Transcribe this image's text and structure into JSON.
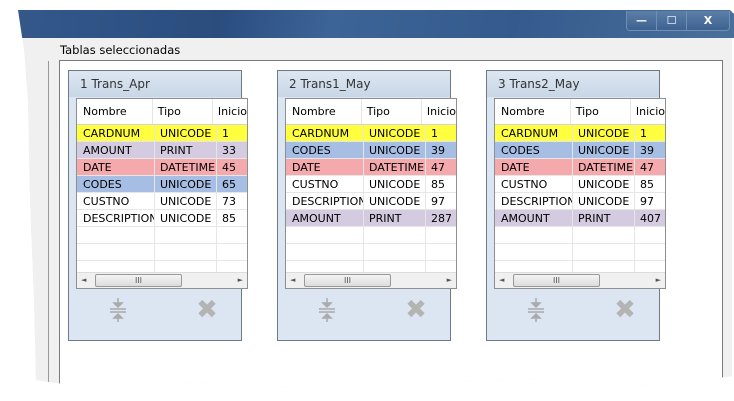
{
  "window": {
    "controls": {
      "minimize": "—",
      "maximize": "☐",
      "close": "X"
    }
  },
  "group_label": "Tablas seleccionadas",
  "columns": [
    "Nombre",
    "Tipo",
    "Inicio"
  ],
  "row_colors": {
    "yellow": "#ffff40",
    "purple": "#d5cbe0",
    "red": "#f4a9ad",
    "blue": "#a6bee4",
    "white": "#ffffff"
  },
  "tables": [
    {
      "title": "1 Trans_Apr",
      "rows": [
        {
          "nombre": "CARDNUM",
          "tipo": "UNICODE",
          "inicio": "1",
          "color": "#ffff40"
        },
        {
          "nombre": "AMOUNT",
          "tipo": "PRINT",
          "inicio": "33",
          "color": "#d5cbe0"
        },
        {
          "nombre": "DATE",
          "tipo": "DATETIME",
          "inicio": "45",
          "color": "#f4a9ad"
        },
        {
          "nombre": "CODES",
          "tipo": "UNICODE",
          "inicio": "65",
          "color": "#a6bee4"
        },
        {
          "nombre": "CUSTNO",
          "tipo": "UNICODE",
          "inicio": "73",
          "color": "#ffffff"
        },
        {
          "nombre": "DESCRIPTION",
          "tipo": "UNICODE",
          "inicio": "85",
          "color": "#ffffff"
        }
      ]
    },
    {
      "title": "2 Trans1_May",
      "rows": [
        {
          "nombre": "CARDNUM",
          "tipo": "UNICODE",
          "inicio": "1",
          "color": "#ffff40"
        },
        {
          "nombre": "CODES",
          "tipo": "UNICODE",
          "inicio": "39",
          "color": "#a6bee4"
        },
        {
          "nombre": "DATE",
          "tipo": "DATETIME",
          "inicio": "47",
          "color": "#f4a9ad"
        },
        {
          "nombre": "CUSTNO",
          "tipo": "UNICODE",
          "inicio": "85",
          "color": "#ffffff"
        },
        {
          "nombre": "DESCRIPTION",
          "tipo": "UNICODE",
          "inicio": "97",
          "color": "#ffffff"
        },
        {
          "nombre": "AMOUNT",
          "tipo": "PRINT",
          "inicio": "287",
          "color": "#d5cbe0"
        }
      ]
    },
    {
      "title": "3 Trans2_May",
      "rows": [
        {
          "nombre": "CARDNUM",
          "tipo": "UNICODE",
          "inicio": "1",
          "color": "#ffff40"
        },
        {
          "nombre": "CODES",
          "tipo": "UNICODE",
          "inicio": "39",
          "color": "#a6bee4"
        },
        {
          "nombre": "DATE",
          "tipo": "DATETIME",
          "inicio": "47",
          "color": "#f4a9ad"
        },
        {
          "nombre": "CUSTNO",
          "tipo": "UNICODE",
          "inicio": "85",
          "color": "#ffffff"
        },
        {
          "nombre": "DESCRIPTION",
          "tipo": "UNICODE",
          "inicio": "97",
          "color": "#ffffff"
        },
        {
          "nombre": "AMOUNT",
          "tipo": "PRINT",
          "inicio": "407",
          "color": "#d5cbe0"
        }
      ]
    }
  ],
  "scroll": {
    "left": "◄",
    "right": "►",
    "grip": "III"
  },
  "icons": {
    "move": "split-arrows-icon",
    "delete": "x-icon"
  }
}
